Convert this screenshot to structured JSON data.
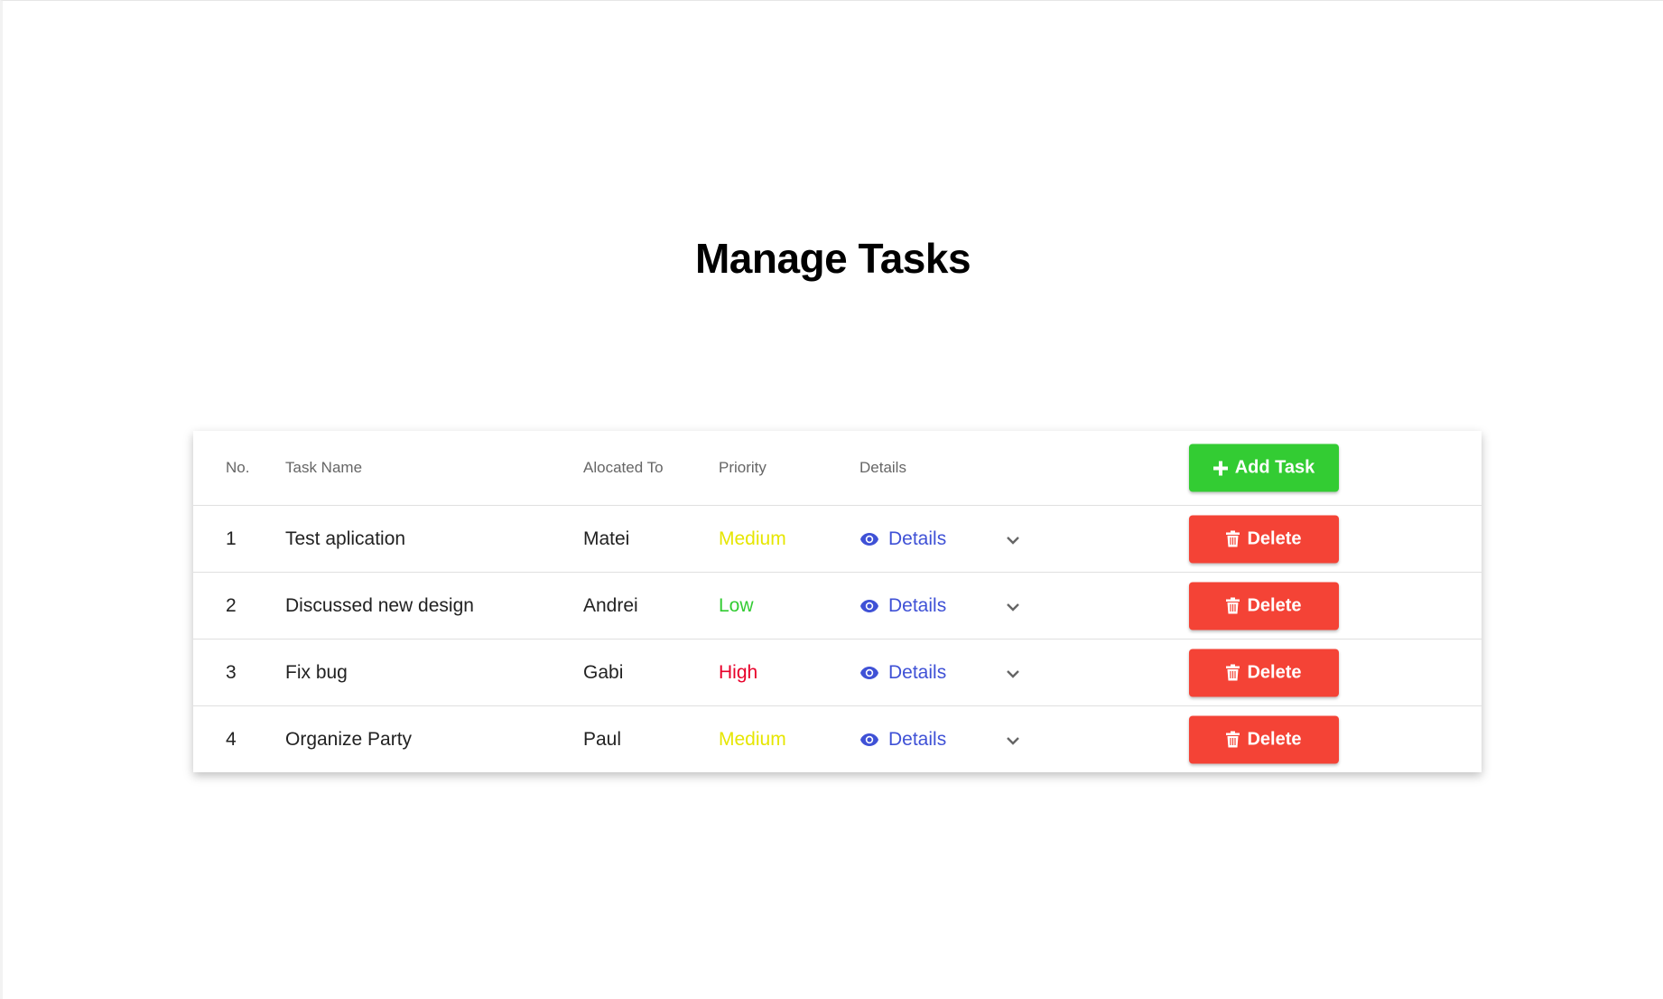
{
  "title": "Manage Tasks",
  "colors": {
    "add": "#33cc33",
    "delete": "#f44336",
    "details": "#3f51d6",
    "medium": "#e6e600",
    "low": "#33cc33",
    "high": "#e8002a"
  },
  "table": {
    "headers": {
      "no": "No.",
      "name": "Task Name",
      "allocated": "Alocated To",
      "priority": "Priority",
      "details": "Details"
    },
    "add_label": "Add Task",
    "delete_label": "Delete",
    "details_label": "Details",
    "rows": [
      {
        "no": "1",
        "name": "Test aplication",
        "allocated": "Matei",
        "priority": "Medium"
      },
      {
        "no": "2",
        "name": "Discussed new design",
        "allocated": "Andrei",
        "priority": "Low"
      },
      {
        "no": "3",
        "name": "Fix bug",
        "allocated": "Gabi",
        "priority": "High"
      },
      {
        "no": "4",
        "name": "Organize Party",
        "allocated": "Paul",
        "priority": "Medium"
      }
    ]
  }
}
